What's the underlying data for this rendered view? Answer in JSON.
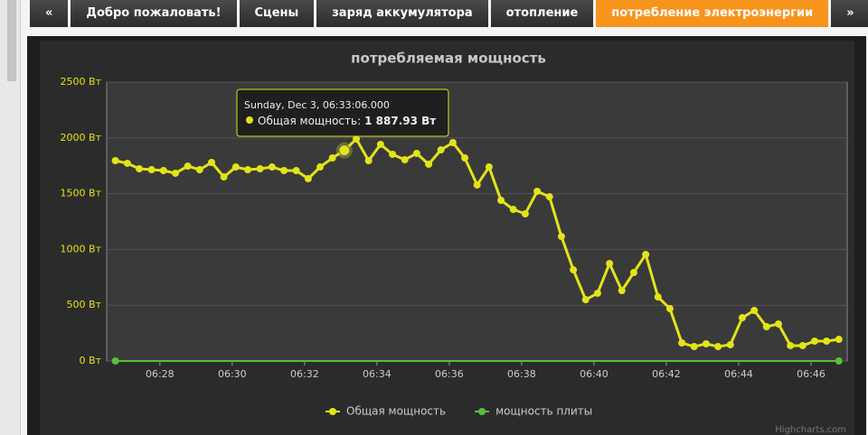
{
  "tabs": [
    "«",
    "Добро пожаловать!",
    "Сцены",
    "заряд аккумулятора",
    "отопление",
    "потребление электроэнергии",
    "»"
  ],
  "active_tab": 5,
  "chart_data": {
    "type": "line",
    "title": "потребляемая мощность",
    "credits": "Highcharts.com",
    "x": [
      386.77,
      387.1,
      387.43,
      387.77,
      388.1,
      388.43,
      388.77,
      389.1,
      389.43,
      389.77,
      390.1,
      390.43,
      390.77,
      391.1,
      391.43,
      391.77,
      392.1,
      392.43,
      392.77,
      393.1,
      393.43,
      393.77,
      394.1,
      394.43,
      394.77,
      395.1,
      395.43,
      395.77,
      396.1,
      396.43,
      396.77,
      397.1,
      397.43,
      397.77,
      398.1,
      398.43,
      398.77,
      399.1,
      399.43,
      399.77,
      400.1,
      400.43,
      400.77,
      401.1,
      401.43,
      401.77,
      402.1,
      402.43,
      402.77,
      403.1,
      403.43,
      403.77,
      404.1,
      404.43,
      404.77,
      405.1,
      405.43,
      405.77,
      406.1,
      406.43,
      406.77
    ],
    "series": [
      {
        "name": "Общая мощность",
        "color": "#e3e31a",
        "values": [
          1796,
          1772,
          1723,
          1715,
          1707,
          1683,
          1747,
          1715,
          1780,
          1650,
          1739,
          1715,
          1723,
          1739,
          1707,
          1707,
          1634,
          1739,
          1820,
          1887.93,
          1990,
          1796,
          1942,
          1853,
          1804,
          1861,
          1764,
          1893,
          1958,
          1820,
          1578,
          1739,
          1440,
          1359,
          1319,
          1521,
          1472,
          1116,
          817,
          550,
          607,
          874,
          631,
          793,
          955,
          574,
          469,
          162,
          129,
          154,
          129,
          146,
          388,
          453,
          307,
          332,
          138,
          138,
          178,
          178,
          194
        ]
      },
      {
        "name": "мощность плиты",
        "color": "#55bf3b",
        "x": [
          386.77,
          406.77
        ],
        "values": [
          0,
          0
        ]
      }
    ],
    "xlim": [
      386.53,
      407.0
    ],
    "xticks": [
      {
        "value": 388,
        "label": "06:28"
      },
      {
        "value": 390,
        "label": "06:30"
      },
      {
        "value": 392,
        "label": "06:32"
      },
      {
        "value": 394,
        "label": "06:34"
      },
      {
        "value": 396,
        "label": "06:36"
      },
      {
        "value": 398,
        "label": "06:38"
      },
      {
        "value": 400,
        "label": "06:40"
      },
      {
        "value": 402,
        "label": "06:42"
      },
      {
        "value": 404,
        "label": "06:44"
      },
      {
        "value": 406,
        "label": "06:46"
      }
    ],
    "ylim": [
      0,
      2500
    ],
    "yticks": [
      {
        "value": 0,
        "label": "0 Вт"
      },
      {
        "value": 500,
        "label": "500 Вт"
      },
      {
        "value": 1000,
        "label": "1000 Вт"
      },
      {
        "value": 1500,
        "label": "1500 Вт"
      },
      {
        "value": 2000,
        "label": "2000 Вт"
      },
      {
        "value": 2500,
        "label": "2500 Вт"
      }
    ],
    "grid": true,
    "legend": "bottom",
    "tooltip": {
      "point": 19,
      "header": "Sunday, Dec 3, 06:33:06.000",
      "series_label": "Общая мощность:",
      "value": 1887.93,
      "value_label": "1 887.93 Вт"
    }
  }
}
